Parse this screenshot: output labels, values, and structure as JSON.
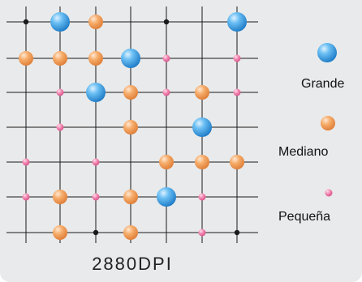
{
  "caption": "2880DPI",
  "legend": {
    "grande": "Grande",
    "mediano": "Mediano",
    "pequena": "Pequeña"
  },
  "colors": {
    "background": "#e9eaeb",
    "grid": "#1a1a1a",
    "grande": "#3da0e6",
    "mediano": "#f2a05e",
    "pequena": "#ef7fab",
    "dot": "#1a1a1a"
  },
  "grid": {
    "columns": 7,
    "rows": 7,
    "cells": [
      [
        "dot",
        "large",
        "medium",
        "none",
        "dot",
        "none",
        "large"
      ],
      [
        "medium",
        "medium",
        "medium",
        "large",
        "small",
        "none",
        "small"
      ],
      [
        "none",
        "small",
        "large",
        "medium",
        "small",
        "medium",
        "small"
      ],
      [
        "none",
        "small",
        "none",
        "medium",
        "none",
        "large",
        "none"
      ],
      [
        "small",
        "none",
        "small",
        "none",
        "medium",
        "medium",
        "medium"
      ],
      [
        "small",
        "medium",
        "small",
        "medium",
        "large",
        "small",
        "none"
      ],
      [
        "none",
        "medium",
        "dot",
        "medium",
        "none",
        "small",
        "dot"
      ]
    ]
  }
}
